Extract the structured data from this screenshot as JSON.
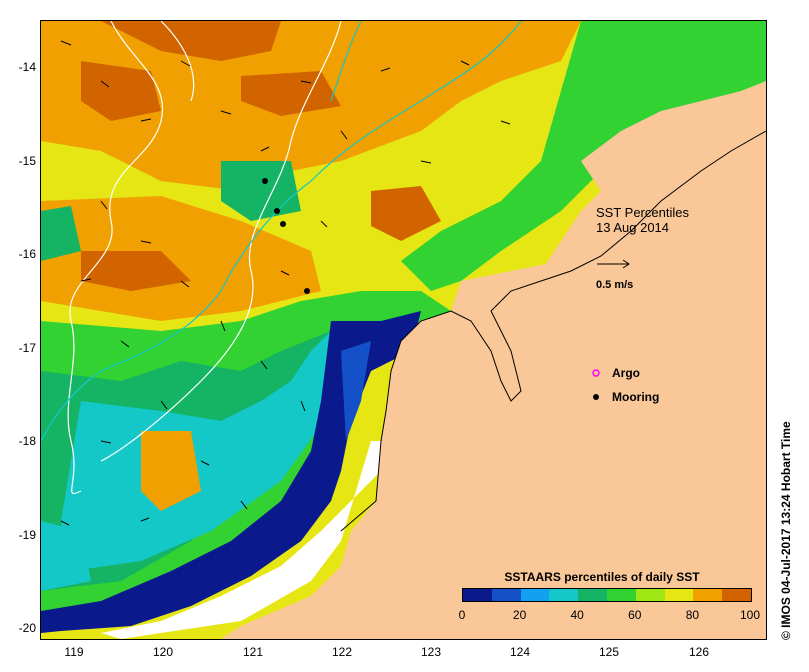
{
  "map": {
    "title_line1": "SST Percentiles",
    "title_line2": "13 Aug 2014",
    "scale_label": "0.5 m/s",
    "legend": {
      "argo_label": "Argo",
      "mooring_label": "Mooring"
    },
    "y_ticks": [
      "-14",
      "-15",
      "-16",
      "-17",
      "-18",
      "-19",
      "-20"
    ],
    "x_ticks": [
      "119",
      "120",
      "121",
      "122",
      "123",
      "124",
      "125",
      "126"
    ],
    "colorbar": {
      "title": "SSTAARS percentiles of daily SST",
      "ticks": [
        "0",
        "20",
        "40",
        "60",
        "80",
        "100"
      ],
      "colors": [
        "#0a1a8c",
        "#1450c8",
        "#14a0f0",
        "#14c8c8",
        "#14b464",
        "#32d232",
        "#a0e614",
        "#e6e614",
        "#f0a000",
        "#d26400",
        "#a01414"
      ]
    },
    "credit": "© IMOS 04-Jul-2017 13:24 Hobart Time",
    "colors": {
      "land": "#f9c798",
      "no_data": "#ffffff"
    }
  }
}
